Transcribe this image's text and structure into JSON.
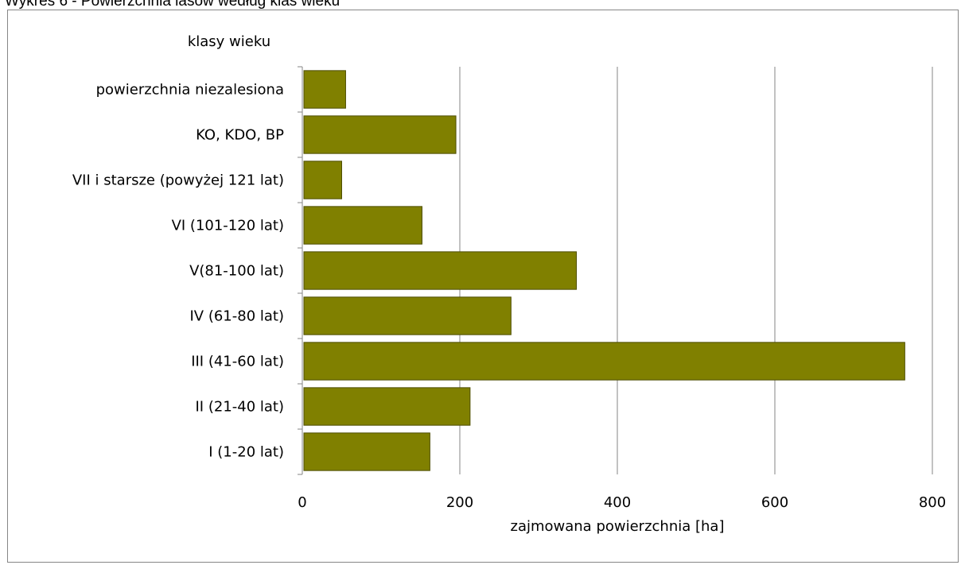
{
  "page_title": "Wykres 6 - Powierzchnia lasów według klas wieku",
  "chart_data": {
    "type": "bar",
    "orientation": "horizontal",
    "title": "",
    "xlabel": "zajmowana powierzchnia [ha]",
    "ylabel": "klasy wieku",
    "xlim": [
      0,
      800
    ],
    "xticks": [
      0,
      200,
      400,
      600,
      800
    ],
    "grid": "vertical",
    "legend": "none",
    "bar_color": "#808000",
    "categories": [
      "powierzchnia niezalesiona",
      "KO, KDO, BP",
      "VII i starsze (powyżej 121 lat)",
      "VI (101-120 lat)",
      "V(81-100 lat)",
      "IV (61-80 lat)",
      "III (41-60 lat)",
      "II (21-40 lat)",
      "I (1-20 lat)"
    ],
    "values": [
      55,
      195,
      50,
      152,
      348,
      265,
      765,
      213,
      162
    ]
  }
}
